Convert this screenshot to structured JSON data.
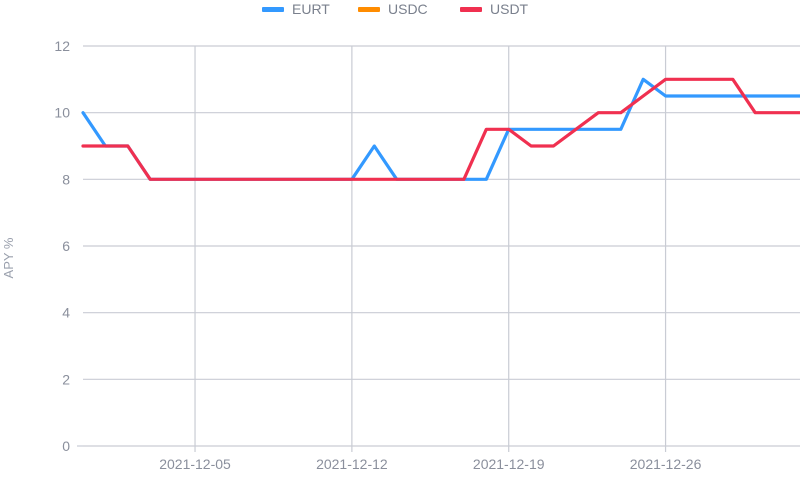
{
  "chart_data": {
    "type": "line",
    "title": "",
    "xlabel": "",
    "ylabel": "APY %",
    "ylim": [
      0,
      12
    ],
    "yticks": [
      0,
      2,
      4,
      6,
      8,
      10,
      12
    ],
    "xlim": [
      "2021-11-30",
      "2022-01-01"
    ],
    "xticks": [
      "2021-12-05",
      "2021-12-12",
      "2021-12-19",
      "2021-12-26"
    ],
    "grid": true,
    "legend_position": "top-center",
    "series": [
      {
        "name": "EURT",
        "color": "#3399ff",
        "points": [
          [
            "2021-11-30",
            10
          ],
          [
            "2021-12-01",
            9
          ],
          [
            "2021-12-02",
            9
          ],
          [
            "2021-12-03",
            8
          ],
          [
            "2021-12-12",
            8
          ],
          [
            "2021-12-13",
            9
          ],
          [
            "2021-12-14",
            8
          ],
          [
            "2021-12-18",
            8
          ],
          [
            "2021-12-19",
            9.5
          ],
          [
            "2021-12-24",
            9.5
          ],
          [
            "2021-12-25",
            11
          ],
          [
            "2021-12-26",
            10.5
          ],
          [
            "2022-01-01",
            10.5
          ]
        ]
      },
      {
        "name": "USDC",
        "color": "#ff8c00",
        "points": []
      },
      {
        "name": "USDT",
        "color": "#f03050",
        "points": [
          [
            "2021-11-30",
            9
          ],
          [
            "2021-12-02",
            9
          ],
          [
            "2021-12-03",
            8
          ],
          [
            "2021-12-16",
            8
          ],
          [
            "2021-12-17",
            8
          ],
          [
            "2021-12-18",
            9.5
          ],
          [
            "2021-12-19",
            9.5
          ],
          [
            "2021-12-20",
            9
          ],
          [
            "2021-12-21",
            9
          ],
          [
            "2021-12-22",
            9.5
          ],
          [
            "2021-12-23",
            10
          ],
          [
            "2021-12-24",
            10
          ],
          [
            "2021-12-25",
            10.5
          ],
          [
            "2021-12-26",
            11
          ],
          [
            "2021-12-29",
            11
          ],
          [
            "2021-12-30",
            10
          ],
          [
            "2022-01-01",
            10
          ]
        ]
      }
    ]
  }
}
